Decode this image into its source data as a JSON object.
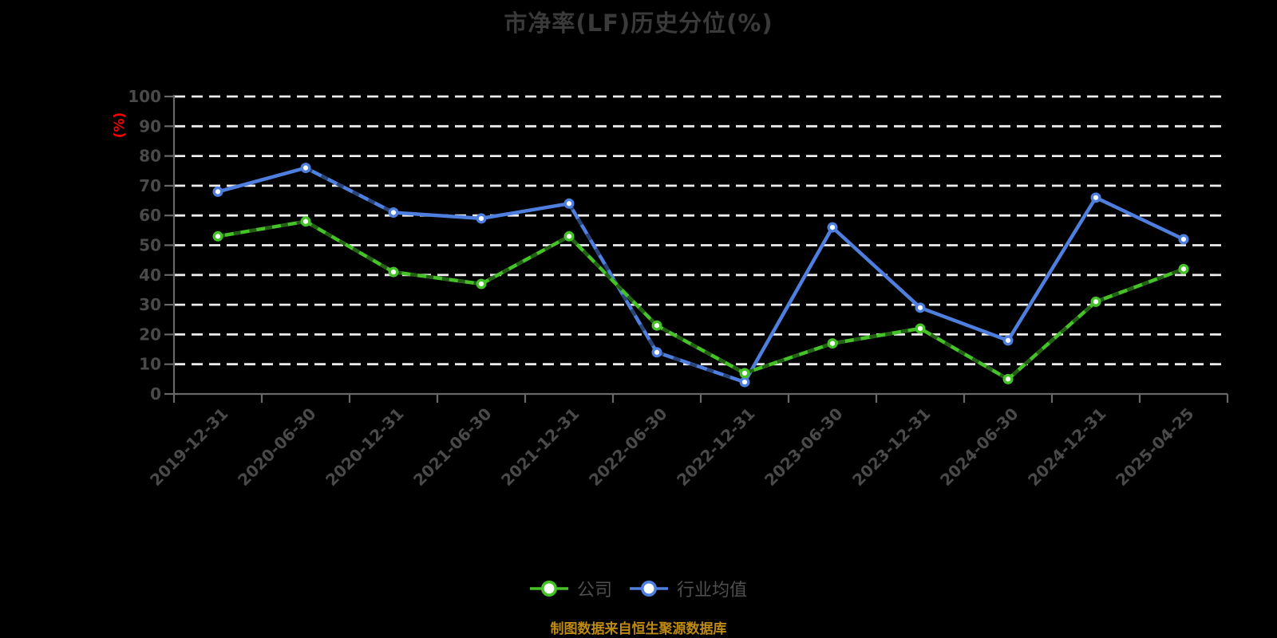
{
  "title": {
    "text": "市净率(LF)历史分位(%)"
  },
  "footer": {
    "caption": "制图数据来自恒生聚源数据库"
  },
  "colors": {
    "background": "#000000",
    "title": "#3a3a3a",
    "axis": "#686868",
    "tick_label": "#4a4a4a",
    "grid": "#ececec",
    "ylabel": "#ff0000",
    "legend_text": "#4f4f4f",
    "caption": "#bd8a12",
    "company_green": "#46c229",
    "industry_blue": "#4e7fde"
  },
  "chart_data": {
    "type": "line",
    "title": "市净率(LF)历史分位(%)",
    "xlabel": "",
    "ylabel": "(%)",
    "ylim": [
      0,
      100
    ],
    "ytick_step": 10,
    "grid": true,
    "grid_style": "dashed",
    "legend_position": "bottom",
    "categories": [
      "2019-12-31",
      "2020-06-30",
      "2020-12-31",
      "2021-06-30",
      "2021-12-31",
      "2022-06-30",
      "2022-12-31",
      "2023-06-30",
      "2023-12-31",
      "2024-06-30",
      "2024-12-31",
      "2025-04-25"
    ],
    "series": [
      {
        "name": "公司",
        "color": "#46c229",
        "values": [
          53,
          58,
          41,
          37,
          53,
          23,
          7,
          17,
          22,
          5,
          31,
          42
        ]
      },
      {
        "name": "行业均值",
        "color": "#4e7fde",
        "values": [
          68,
          76,
          61,
          59,
          64,
          14,
          4,
          56,
          29,
          18,
          66,
          52
        ]
      }
    ]
  }
}
